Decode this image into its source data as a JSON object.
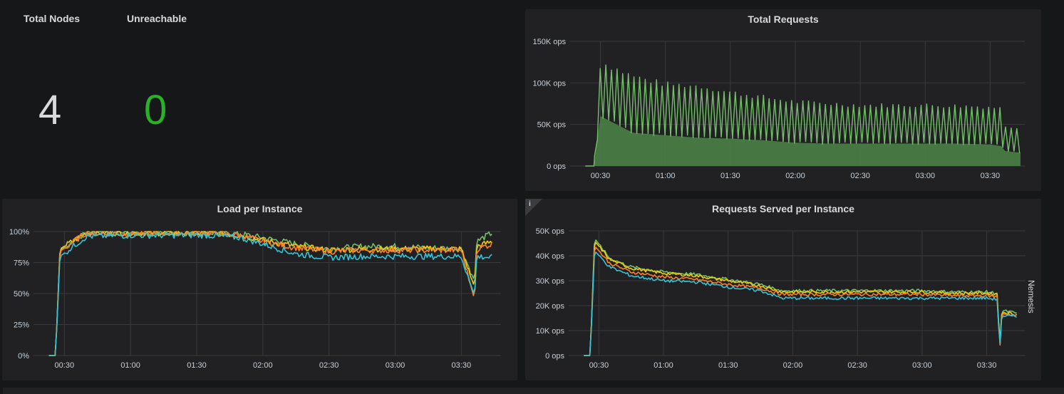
{
  "stats": {
    "total_nodes": {
      "title": "Total Nodes",
      "value": "4",
      "color": "#d8d9da"
    },
    "unreachable": {
      "title": "Unreachable",
      "value": "0",
      "color": "#29b128"
    }
  },
  "panels": {
    "total_requests": {
      "title": "Total Requests"
    },
    "load_per_instance": {
      "title": "Load per Instance"
    },
    "requests_served": {
      "title": "Requests Served per Instance",
      "info_glyph": "i",
      "side_label": "Nemesis"
    }
  },
  "colors": {
    "green": "#73bf69",
    "green_dark": "#4a7f45",
    "yellow": "#f2cc0c",
    "orange": "#ff7f2a",
    "cyan": "#35c3d6",
    "green_line": "#5fb85a"
  },
  "chart_data": [
    {
      "type": "area",
      "title": "Total Requests",
      "x_ticks": [
        "00:30",
        "01:00",
        "01:30",
        "02:00",
        "02:30",
        "03:00",
        "03:30"
      ],
      "y_ticks": [
        "0 ops",
        "50K ops",
        "100K ops",
        "150K ops"
      ],
      "ylim": [
        0,
        150000
      ],
      "grid": true,
      "x": [
        "00:23",
        "00:27",
        "00:30",
        "00:45",
        "01:00",
        "01:15",
        "01:30",
        "01:45",
        "02:00",
        "02:15",
        "02:30",
        "02:45",
        "03:00",
        "03:15",
        "03:30",
        "03:35",
        "03:37",
        "03:44"
      ],
      "series": [
        {
          "name": "",
          "values": [
            0,
            0,
            130000,
            112000,
            102000,
            100000,
            92000,
            86000,
            80000,
            78000,
            76000,
            76000,
            76000,
            75000,
            74000,
            72000,
            50000,
            48000
          ],
          "role": "peaks"
        },
        {
          "name": "",
          "values": [
            0,
            0,
            60000,
            40000,
            37000,
            34000,
            33000,
            31000,
            28000,
            27000,
            27000,
            27000,
            27000,
            27000,
            26000,
            24000,
            18000,
            16000
          ],
          "role": "troughs"
        }
      ]
    },
    {
      "type": "line",
      "title": "Load per Instance",
      "x_ticks": [
        "00:30",
        "01:00",
        "01:30",
        "02:00",
        "02:30",
        "03:00",
        "03:30"
      ],
      "y_ticks": [
        "0%",
        "25%",
        "50%",
        "75%",
        "100%"
      ],
      "ylim": [
        0,
        100
      ],
      "grid": true,
      "x": [
        "00:23",
        "00:26",
        "00:28",
        "00:40",
        "01:00",
        "01:20",
        "01:35",
        "01:50",
        "02:00",
        "02:15",
        "02:30",
        "02:45",
        "03:00",
        "03:15",
        "03:30",
        "03:36",
        "03:37",
        "03:44"
      ],
      "series": [
        {
          "name": "",
          "color_key": "green",
          "values": [
            0,
            0,
            85,
            99,
            99,
            99,
            99,
            98,
            95,
            90,
            86,
            88,
            88,
            87,
            86,
            60,
            92,
            99
          ]
        },
        {
          "name": "",
          "color_key": "yellow",
          "values": [
            0,
            0,
            86,
            99,
            99,
            99,
            99,
            97,
            93,
            88,
            85,
            86,
            86,
            86,
            86,
            55,
            88,
            92
          ]
        },
        {
          "name": "",
          "color_key": "orange",
          "values": [
            0,
            0,
            84,
            99,
            98,
            99,
            99,
            97,
            92,
            87,
            84,
            85,
            85,
            85,
            85,
            45,
            86,
            90
          ]
        },
        {
          "name": "",
          "color_key": "cyan",
          "values": [
            0,
            0,
            80,
            96,
            97,
            97,
            97,
            95,
            90,
            82,
            79,
            80,
            80,
            80,
            80,
            48,
            80,
            79
          ]
        }
      ]
    },
    {
      "type": "line",
      "title": "Requests Served per Instance",
      "x_ticks": [
        "00:30",
        "01:00",
        "01:30",
        "02:00",
        "02:30",
        "03:00",
        "03:30"
      ],
      "y_ticks": [
        "0 ops",
        "10K ops",
        "20K ops",
        "30K ops",
        "40K ops",
        "50K ops"
      ],
      "ylim": [
        0,
        50000
      ],
      "grid": true,
      "x": [
        "00:23",
        "00:26",
        "00:28",
        "00:35",
        "00:45",
        "01:00",
        "01:15",
        "01:30",
        "01:45",
        "01:55",
        "02:15",
        "02:30",
        "02:45",
        "03:00",
        "03:15",
        "03:30",
        "03:35",
        "03:36",
        "03:37",
        "03:44"
      ],
      "series": [
        {
          "name": "",
          "color_key": "green",
          "values": [
            0,
            0,
            47000,
            39000,
            35500,
            33500,
            32500,
            30500,
            28500,
            26000,
            26000,
            26000,
            26000,
            26000,
            25500,
            25500,
            25000,
            3000,
            18000,
            17000
          ]
        },
        {
          "name": "",
          "color_key": "yellow",
          "values": [
            0,
            0,
            46000,
            38500,
            35000,
            33000,
            32000,
            30000,
            28000,
            25500,
            25500,
            25500,
            25500,
            25500,
            25000,
            25000,
            24500,
            2500,
            17500,
            16500
          ]
        },
        {
          "name": "",
          "color_key": "orange",
          "values": [
            0,
            0,
            44000,
            37000,
            33500,
            31500,
            30500,
            28500,
            27000,
            24500,
            24500,
            24500,
            24500,
            24500,
            24000,
            24000,
            23500,
            1000,
            17000,
            16000
          ]
        },
        {
          "name": "",
          "color_key": "cyan",
          "values": [
            0,
            0,
            42000,
            35500,
            32000,
            30000,
            29500,
            27500,
            26000,
            23000,
            23000,
            23000,
            23000,
            23000,
            23000,
            23000,
            22500,
            2000,
            16000,
            15500
          ]
        }
      ]
    }
  ]
}
